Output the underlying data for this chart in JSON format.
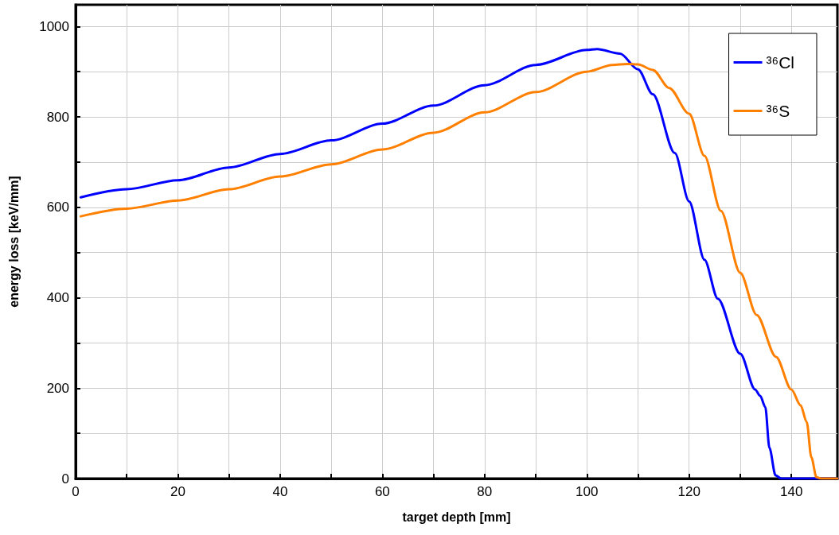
{
  "chart_data": {
    "type": "line",
    "xlabel": "target depth [mm]",
    "ylabel": "energy loss [keV/mm]",
    "xlim": [
      0,
      149
    ],
    "ylim": [
      0,
      1048
    ],
    "xticks": [
      0,
      {
        "value": 10,
        "label": null
      },
      20,
      {
        "value": 30,
        "label": null
      },
      40,
      {
        "value": 50,
        "label": null
      },
      60,
      {
        "value": 70,
        "label": null
      },
      80,
      {
        "value": 90,
        "label": null
      },
      100,
      {
        "value": 110,
        "label": null
      },
      120,
      {
        "value": 130,
        "label": null
      },
      140
    ],
    "yticks": [
      0,
      {
        "value": 100,
        "label": null
      },
      200,
      {
        "value": 300,
        "label": null
      },
      400,
      {
        "value": 500,
        "label": null
      },
      600,
      {
        "value": 700,
        "label": null
      },
      800,
      {
        "value": 900,
        "label": null
      },
      1000
    ],
    "grid": true,
    "legend": "top right",
    "marker": "none",
    "line_style": "solid",
    "series": [
      {
        "name": "³⁶Cl",
        "color": "#0000ff",
        "x": [
          1,
          10,
          20,
          30,
          40,
          50,
          60,
          70,
          80,
          90,
          100,
          102,
          106.5,
          110,
          112.9,
          117.2,
          120,
          123,
          125.6,
          130,
          132.9,
          133.9,
          134.9,
          135.7,
          136.9,
          138,
          149
        ],
        "values": [
          622,
          640,
          660,
          688,
          718,
          748,
          785,
          825,
          870,
          915,
          948,
          950,
          940,
          905,
          850,
          720,
          613,
          484,
          398,
          276,
          197,
          183,
          158,
          68,
          7,
          0,
          0
        ]
      },
      {
        "name": "³⁶S",
        "color": "#ff8000",
        "x": [
          1,
          10,
          20,
          30,
          40,
          50,
          60,
          70,
          80,
          90,
          100,
          105,
          108,
          110,
          112.9,
          116.1,
          120,
          123,
          126.2,
          130,
          133.2,
          137,
          140,
          141.8,
          143,
          143.9,
          144.9,
          145.8,
          149
        ],
        "values": [
          580,
          597,
          615,
          640,
          668,
          695,
          728,
          765,
          810,
          855,
          900,
          915,
          917,
          916,
          904,
          864,
          807,
          714,
          592,
          455,
          362,
          269,
          197,
          162,
          125,
          47,
          3,
          0,
          0
        ]
      }
    ]
  }
}
